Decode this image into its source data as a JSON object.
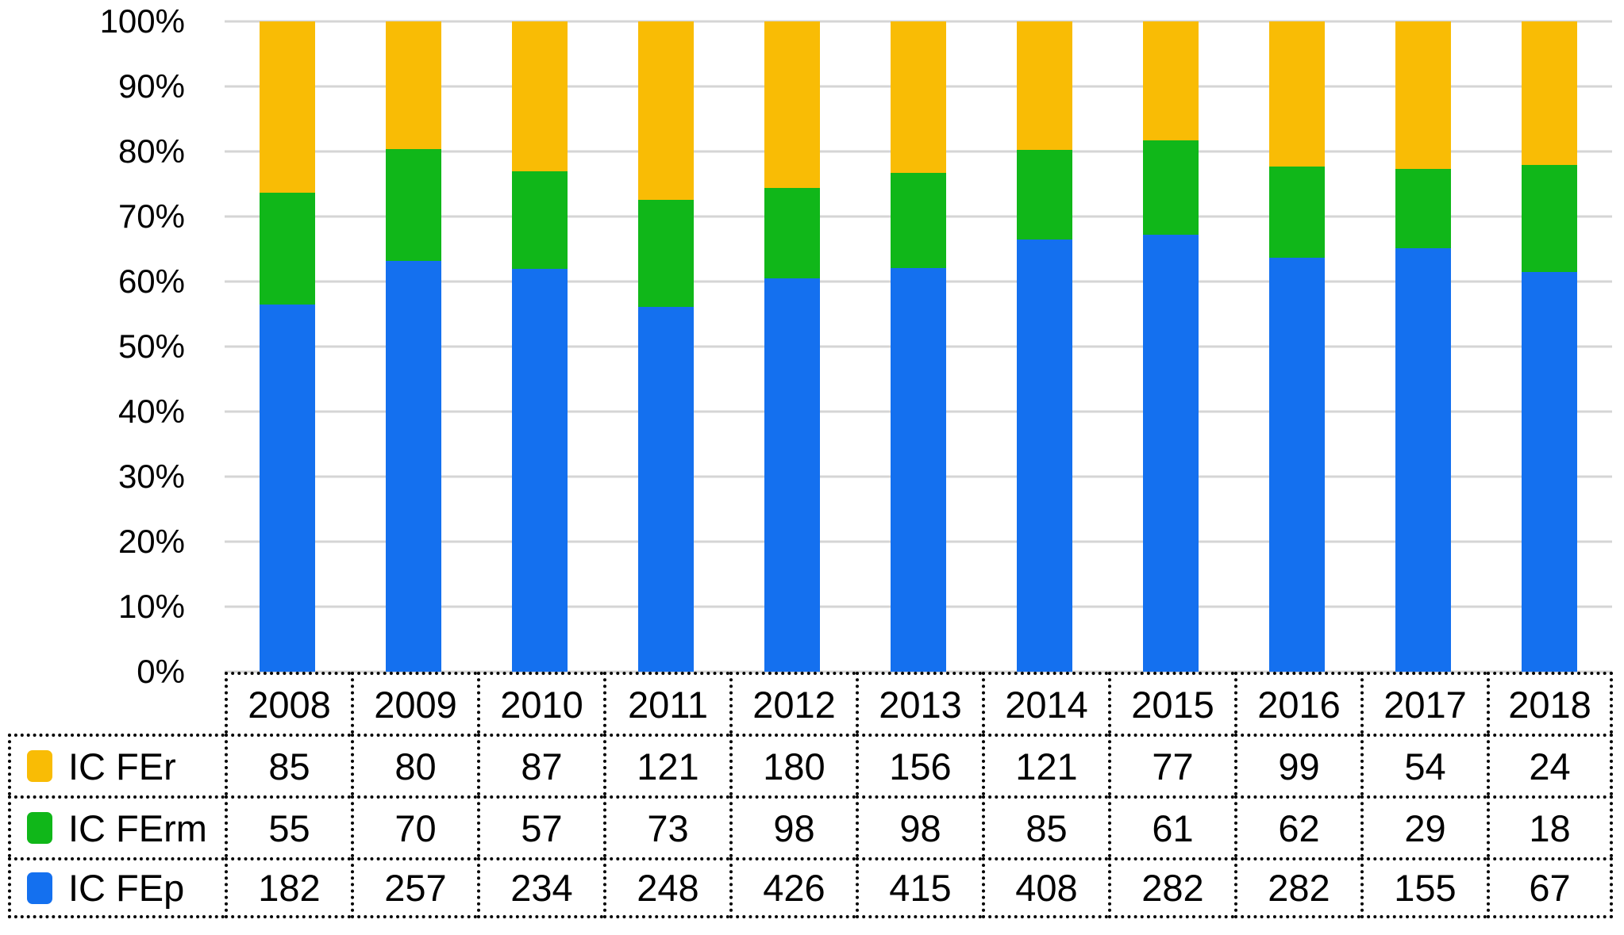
{
  "chart_data": {
    "type": "bar",
    "variant": "stacked-100-percent",
    "title": "",
    "xlabel": "",
    "ylabel": "",
    "grid": true,
    "legend_position": "table-left",
    "categories": [
      "2008",
      "2009",
      "2010",
      "2011",
      "2012",
      "2013",
      "2014",
      "2015",
      "2016",
      "2017",
      "2018"
    ],
    "series": [
      {
        "name": "IC FEr",
        "color": "#F9BC05",
        "values": [
          85,
          80,
          87,
          121,
          180,
          156,
          121,
          77,
          99,
          54,
          24
        ]
      },
      {
        "name": "IC FErm",
        "color": "#10B719",
        "values": [
          55,
          70,
          57,
          73,
          98,
          98,
          85,
          61,
          62,
          29,
          18
        ]
      },
      {
        "name": "IC FEp",
        "color": "#1470EF",
        "values": [
          182,
          257,
          234,
          248,
          426,
          415,
          408,
          282,
          282,
          155,
          67
        ]
      }
    ],
    "y_axis": {
      "min": 0,
      "max": 100,
      "tick_step": 10,
      "ticks": [
        "100%",
        "90%",
        "80%",
        "70%",
        "60%",
        "50%",
        "40%",
        "30%",
        "20%",
        "10%",
        "0%"
      ]
    }
  },
  "colors": {
    "gridline": "#d5d5d5",
    "table_border": "#000000",
    "background": "#ffffff",
    "text": "#000000"
  }
}
